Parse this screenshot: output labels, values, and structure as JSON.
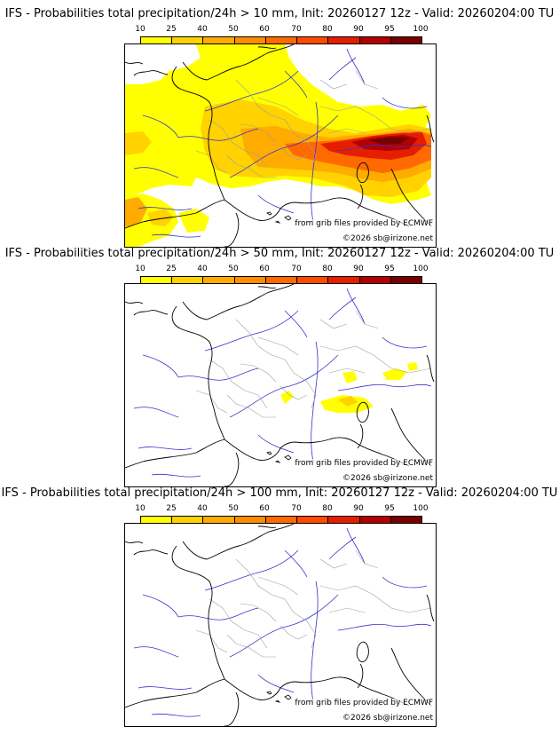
{
  "colorbar": {
    "ticks": [
      "10",
      "25",
      "40",
      "50",
      "60",
      "70",
      "80",
      "90",
      "95",
      "100"
    ],
    "colors": [
      "#ffff00",
      "#ffd200",
      "#ffab00",
      "#ff8c00",
      "#ff6a00",
      "#ff4a00",
      "#e61e00",
      "#b30000",
      "#780000"
    ]
  },
  "panels": [
    {
      "title": "IFS - Probabilities total precipitation/24h > 10 mm, Init: 20260127 12z - Valid: 20260204:00 TU",
      "credit": "from grib files provided by ECMWF",
      "copyright": "©2026 sb@irizone.net"
    },
    {
      "title": "IFS - Probabilities total precipitation/24h > 50 mm, Init: 20260127 12z - Valid: 20260204:00 TU",
      "credit": "from grib files provided by ECMWF",
      "copyright": "©2026 sb@irizone.net"
    },
    {
      "title": "IFS - Probabilities total precipitation/24h > 100 mm, Init: 20260127 12z - Valid: 20260204:00 TU",
      "credit": "from grib files provided by ECMWF",
      "copyright": "©2026 sb@irizone.net"
    }
  ]
}
